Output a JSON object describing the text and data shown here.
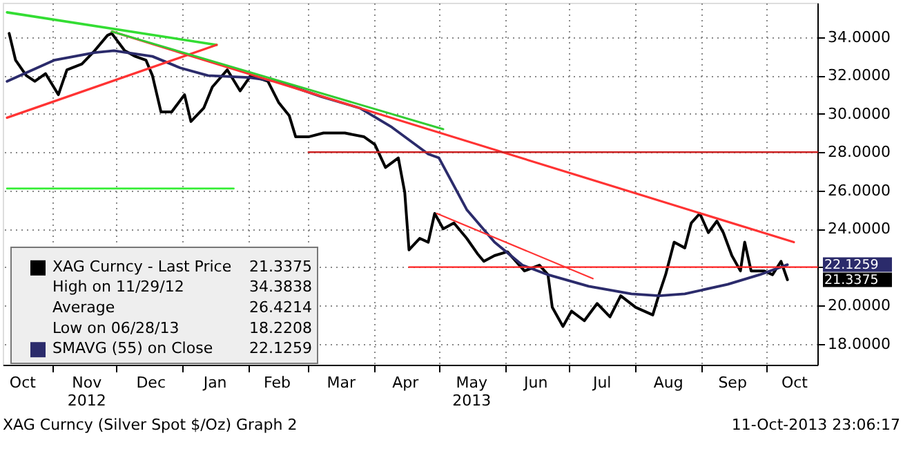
{
  "chart_data": {
    "type": "line",
    "xlim": [
      "2012-10-09",
      "2013-10-25"
    ],
    "ylim": [
      16.9,
      35.8
    ],
    "yticks": [
      {
        "value": 18,
        "label": "18.0000"
      },
      {
        "value": 20,
        "label": "20.0000"
      },
      {
        "value": 22,
        "label": null
      },
      {
        "value": 24,
        "label": "24.0000"
      },
      {
        "value": 26,
        "label": "26.0000"
      },
      {
        "value": 28,
        "label": "28.0000"
      },
      {
        "value": 30,
        "label": "30.0000"
      },
      {
        "value": 32,
        "label": "32.0000"
      },
      {
        "value": 34,
        "label": "34.0000"
      }
    ],
    "xticks": [
      {
        "value": "2012-10-18",
        "label": "Oct"
      },
      {
        "value": "2012-11-01",
        "label": null
      },
      {
        "value": "2012-11-17",
        "label": "Nov\n2012"
      },
      {
        "value": "2012-12-01",
        "label": null
      },
      {
        "value": "2012-12-17",
        "label": "Dec"
      },
      {
        "value": "2013-01-01",
        "label": null
      },
      {
        "value": "2013-01-16",
        "label": "Jan"
      },
      {
        "value": "2013-02-01",
        "label": null
      },
      {
        "value": "2013-02-14",
        "label": "Feb"
      },
      {
        "value": "2013-03-01",
        "label": null
      },
      {
        "value": "2013-03-16",
        "label": "Mar"
      },
      {
        "value": "2013-04-01",
        "label": null
      },
      {
        "value": "2013-04-15",
        "label": "Apr"
      },
      {
        "value": "2013-05-01",
        "label": null
      },
      {
        "value": "2013-05-16",
        "label": "May\n2013"
      },
      {
        "value": "2013-06-01",
        "label": null
      },
      {
        "value": "2013-06-15",
        "label": "Jun"
      },
      {
        "value": "2013-07-01",
        "label": null
      },
      {
        "value": "2013-07-16",
        "label": "Jul"
      },
      {
        "value": "2013-08-01",
        "label": null
      },
      {
        "value": "2013-08-16",
        "label": "Aug"
      },
      {
        "value": "2013-09-01",
        "label": null
      },
      {
        "value": "2013-09-15",
        "label": "Sep"
      },
      {
        "value": "2013-10-01",
        "label": null
      },
      {
        "value": "2013-10-14",
        "label": "Oct"
      }
    ],
    "grid": true,
    "legend": "bottom left",
    "marker": "none",
    "line_style": "solid",
    "tick_labels": "both",
    "series": [
      {
        "name": "XAG Curncy - Last Price",
        "color": "#000000",
        "x": [
          "2012-10-12",
          "2012-10-15",
          "2012-10-20",
          "2012-10-24",
          "2012-10-29",
          "2012-11-04",
          "2012-11-08",
          "2012-11-15",
          "2012-11-21",
          "2012-11-27",
          "2012-11-29",
          "2012-12-05",
          "2012-12-10",
          "2012-12-15",
          "2012-12-18",
          "2012-12-22",
          "2012-12-27",
          "2013-01-02",
          "2013-01-05",
          "2013-01-11",
          "2013-01-15",
          "2013-01-22",
          "2013-01-28",
          "2013-02-02",
          "2013-02-10",
          "2013-02-15",
          "2013-02-20",
          "2013-02-23",
          "2013-03-01",
          "2013-03-08",
          "2013-03-18",
          "2013-03-27",
          "2013-04-01",
          "2013-04-06",
          "2013-04-12",
          "2013-04-15",
          "2013-04-17",
          "2013-04-22",
          "2013-04-26",
          "2013-04-29",
          "2013-05-03",
          "2013-05-08",
          "2013-05-14",
          "2013-05-19",
          "2013-05-22",
          "2013-05-27",
          "2013-06-02",
          "2013-06-10",
          "2013-06-17",
          "2013-06-21",
          "2013-06-23",
          "2013-06-28",
          "2013-07-02",
          "2013-07-08",
          "2013-07-14",
          "2013-07-20",
          "2013-07-25",
          "2013-08-01",
          "2013-08-09",
          "2013-08-12",
          "2013-08-15",
          "2013-08-19",
          "2013-08-24",
          "2013-08-27",
          "2013-08-31",
          "2013-09-04",
          "2013-09-08",
          "2013-09-11",
          "2013-09-15",
          "2013-09-19",
          "2013-09-21",
          "2013-09-24",
          "2013-09-30",
          "2013-10-04",
          "2013-10-08",
          "2013-10-11"
        ],
        "values": [
          34.2,
          32.8,
          32.0,
          31.7,
          32.1,
          31.0,
          32.3,
          32.6,
          33.3,
          34.1,
          34.2,
          33.3,
          33.0,
          32.8,
          32.0,
          30.1,
          30.1,
          31.0,
          29.6,
          30.3,
          31.4,
          32.3,
          31.2,
          32.0,
          31.7,
          30.6,
          29.9,
          28.8,
          28.8,
          29.0,
          29.0,
          28.8,
          28.4,
          27.2,
          27.7,
          25.9,
          22.9,
          23.5,
          23.3,
          24.8,
          24.0,
          24.3,
          23.5,
          22.7,
          22.3,
          22.6,
          22.8,
          21.8,
          22.1,
          21.6,
          19.9,
          18.9,
          19.7,
          19.2,
          20.1,
          19.4,
          20.5,
          19.9,
          19.5,
          20.6,
          21.6,
          23.3,
          23.0,
          24.3,
          24.8,
          23.8,
          24.4,
          23.8,
          22.6,
          21.8,
          23.3,
          21.8,
          21.8,
          21.6,
          22.3,
          21.3375
        ]
      },
      {
        "name": "SMAVG (55) on Close",
        "color": "#2b2b6b",
        "x": [
          "2012-10-11",
          "2012-11-02",
          "2012-11-21",
          "2012-11-30",
          "2012-12-18",
          "2012-12-31",
          "2013-01-13",
          "2013-02-01",
          "2013-02-14",
          "2013-03-07",
          "2013-03-25",
          "2013-04-09",
          "2013-04-26",
          "2013-05-01",
          "2013-05-14",
          "2013-05-27",
          "2013-06-09",
          "2013-06-21",
          "2013-07-10",
          "2013-07-30",
          "2013-08-12",
          "2013-08-24",
          "2013-09-13",
          "2013-09-28",
          "2013-10-11"
        ],
        "values": [
          31.7,
          32.8,
          33.2,
          33.3,
          33.0,
          32.4,
          32.0,
          31.9,
          31.7,
          30.9,
          30.3,
          29.3,
          27.9,
          27.7,
          25.0,
          23.3,
          22.1,
          21.6,
          21.0,
          20.6,
          20.5,
          20.6,
          21.1,
          21.6,
          22.1259
        ]
      },
      {
        "color": "#33dd33",
        "x": [
          "2012-10-11",
          "2013-01-17"
        ],
        "values": [
          35.3,
          33.6
        ]
      },
      {
        "color": "#ff3333",
        "x": [
          "2012-10-11",
          "2013-01-17"
        ],
        "values": [
          29.8,
          33.6
        ]
      },
      {
        "color": "#ff3333",
        "x": [
          "2012-11-29",
          "2013-10-14"
        ],
        "values": [
          34.3,
          23.3
        ]
      },
      {
        "color": "#33cc33",
        "x": [
          "2012-11-29",
          "2013-05-03"
        ],
        "values": [
          34.3,
          29.2
        ]
      },
      {
        "color": "#33ee33",
        "x": [
          "2012-10-11",
          "2013-01-25"
        ],
        "values": [
          26.1,
          26.1
        ]
      },
      {
        "color": "#cc2222",
        "x": [
          "2013-03-01",
          "2013-10-25"
        ],
        "values": [
          28.0,
          28.0
        ]
      },
      {
        "color": "#ff2222",
        "x": [
          "2013-04-17",
          "2013-10-25"
        ],
        "values": [
          22.0,
          22.0
        ]
      },
      {
        "color": "#ff3333",
        "x": [
          "2013-04-30",
          "2013-07-12"
        ],
        "values": [
          24.8,
          21.4
        ]
      }
    ],
    "annotations": [
      {
        "text": "21.3375",
        "x": "2013-10-11",
        "y": 21.3375
      },
      {
        "text": "22.1259",
        "x": "2013-10-11",
        "y": 22.1259
      },
      "High on 11/29/12",
      "34.3838",
      "Average",
      "26.4214",
      "Low on 06/28/13",
      "18.2208",
      "XAG Curncy (Silver Spot $/Oz) Graph 2",
      "11-Oct-2013 23:06:17"
    ]
  }
}
